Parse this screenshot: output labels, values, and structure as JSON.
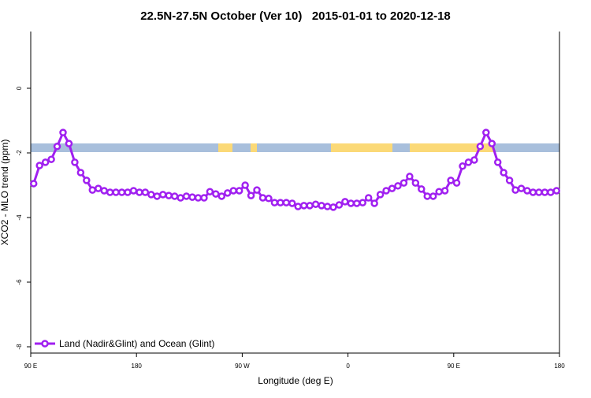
{
  "chart_data": {
    "type": "line",
    "title": "22.5N-27.5N October (Ver 10)   2015-01-01 to 2020-12-18",
    "xlabel": "Longitude (deg E)",
    "ylabel": "XCO2 - MLO trend (ppm)",
    "xlim": [
      90,
      540
    ],
    "xticks": [
      {
        "value": 90,
        "label": "90 E"
      },
      {
        "value": 180,
        "label": "180"
      },
      {
        "value": 270,
        "label": "90 W"
      },
      {
        "value": 360,
        "label": "0"
      },
      {
        "value": 450,
        "label": "90 E"
      },
      {
        "value": 540,
        "label": "180"
      }
    ],
    "ylim": [
      -8.195,
      1.756
    ],
    "yticks": [
      0,
      -2,
      -4,
      -6,
      -8
    ],
    "legend": "bottom-left",
    "x": [
      92.5,
      97.5,
      102.5,
      107.5,
      112.5,
      117.5,
      122.5,
      127.5,
      132.5,
      137.5,
      142.5,
      147.5,
      152.5,
      157.5,
      162.5,
      167.5,
      172.5,
      177.5,
      182.5,
      187.5,
      192.5,
      197.5,
      202.5,
      207.5,
      212.5,
      217.5,
      222.5,
      227.5,
      232.5,
      237.5,
      242.5,
      247.5,
      252.5,
      257.5,
      262.5,
      267.5,
      272.5,
      277.5,
      282.5,
      287.5,
      292.5,
      297.5,
      302.5,
      307.5,
      312.5,
      317.5,
      322.5,
      327.5,
      332.5,
      337.5,
      342.5,
      347.5,
      352.5,
      357.5,
      362.5,
      367.5,
      372.5,
      377.5,
      382.5,
      387.5,
      392.5,
      397.5,
      402.5,
      407.5,
      412.5,
      417.5,
      422.5,
      427.5,
      432.5,
      437.5,
      442.5,
      447.5,
      452.5,
      457.5,
      462.5,
      467.5,
      472.5,
      477.5,
      482.5,
      487.5,
      492.5,
      497.5,
      502.5,
      507.5,
      512.5,
      517.5,
      522.5,
      527.5,
      532.5,
      537.5
    ],
    "series": [
      {
        "name": "Land (Nadir&Glint) and Ocean (Glint)",
        "color": "#a020f0",
        "values": [
          -2.95,
          -2.39,
          -2.29,
          -2.2,
          -1.8,
          -1.37,
          -1.71,
          -2.29,
          -2.61,
          -2.85,
          -3.15,
          -3.1,
          -3.17,
          -3.22,
          -3.22,
          -3.22,
          -3.22,
          -3.17,
          -3.22,
          -3.22,
          -3.29,
          -3.34,
          -3.29,
          -3.32,
          -3.34,
          -3.39,
          -3.34,
          -3.37,
          -3.39,
          -3.39,
          -3.2,
          -3.27,
          -3.34,
          -3.24,
          -3.17,
          -3.17,
          -3.0,
          -3.32,
          -3.15,
          -3.39,
          -3.41,
          -3.54,
          -3.54,
          -3.54,
          -3.56,
          -3.66,
          -3.63,
          -3.63,
          -3.59,
          -3.63,
          -3.66,
          -3.68,
          -3.61,
          -3.51,
          -3.56,
          -3.56,
          -3.54,
          -3.39,
          -3.56,
          -3.29,
          -3.17,
          -3.1,
          -3.02,
          -2.93,
          -2.73,
          -2.93,
          -3.12,
          -3.34,
          -3.34,
          -3.2,
          -3.17,
          -2.85,
          -2.93,
          -2.41,
          -2.29,
          -2.22,
          -1.8,
          -1.37,
          -1.71,
          -2.29,
          -2.61,
          -2.85,
          -3.15,
          -3.1,
          -3.17,
          -3.22,
          -3.22,
          -3.22,
          -3.22,
          -3.17
        ]
      }
    ]
  }
}
